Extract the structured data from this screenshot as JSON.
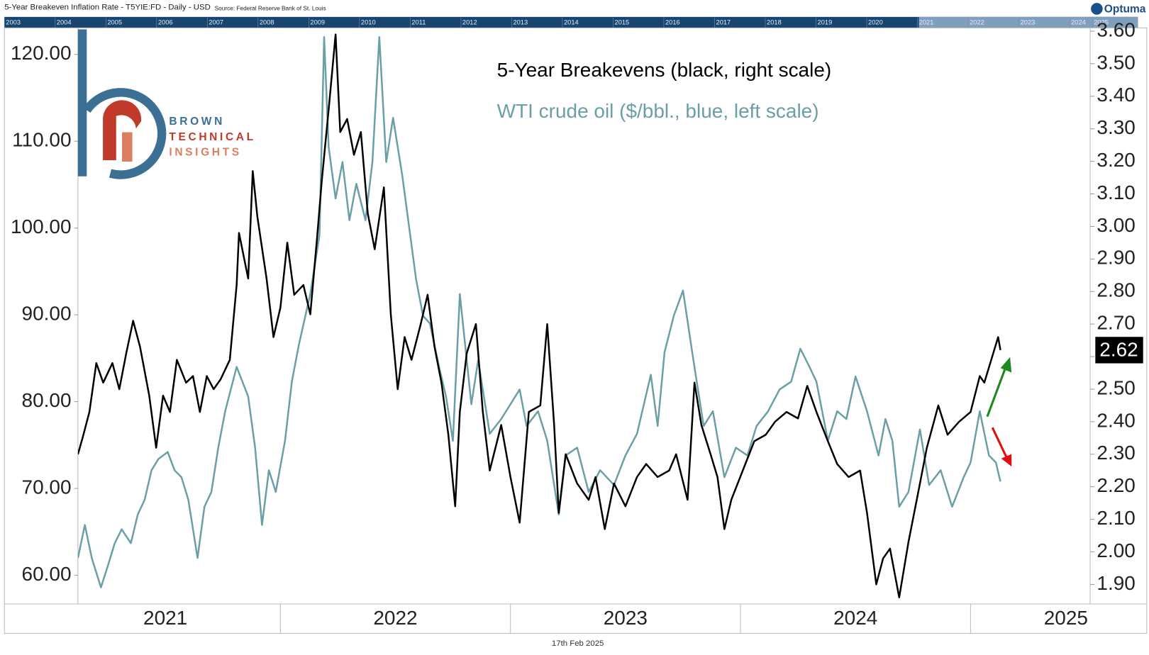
{
  "header": {
    "title": "5-Year Breakeven Inflation Rate - T5YIE:FD - Daily - USD",
    "source": "Source: Federal Reserve Bank of St. Louis",
    "brand": "Optuma"
  },
  "navigator": {
    "years": [
      "2003",
      "2004",
      "2005",
      "2006",
      "2007",
      "2008",
      "2009",
      "2010",
      "2011",
      "2012",
      "2013",
      "2014",
      "2015",
      "2016",
      "2017",
      "2018",
      "2019",
      "2020",
      "2021",
      "2022",
      "2023",
      "2024",
      "2025"
    ]
  },
  "logo": {
    "line1": "BROWN",
    "line2": "TECHNICAL",
    "line3": "INSIGHTS"
  },
  "date": "17th Feb 2025",
  "chart_data": {
    "type": "line",
    "xlim": [
      2021.12,
      2025.52
    ],
    "xticks": [
      {
        "value": 2021.5,
        "label": "2021"
      },
      {
        "value": 2022.5,
        "label": "2022"
      },
      {
        "value": 2023.5,
        "label": "2023"
      },
      {
        "value": 2024.5,
        "label": "2024"
      },
      {
        "value": 2025.5,
        "label": "2025"
      }
    ],
    "x_dividers": [
      2022,
      2023,
      2024,
      2025
    ],
    "ylim": [
      56.7,
      123.05
    ],
    "yticks": [
      {
        "value": 60,
        "label": "60.00"
      },
      {
        "value": 70,
        "label": "70.00"
      },
      {
        "value": 80,
        "label": "80.00"
      },
      {
        "value": 90,
        "label": "90.00"
      },
      {
        "value": 100,
        "label": "100.00"
      },
      {
        "value": 110,
        "label": "110.00"
      },
      {
        "value": 120,
        "label": "120.00"
      }
    ],
    "y2lim": [
      1.84,
      3.61
    ],
    "y2ticks": [
      {
        "value": 1.9,
        "label": "1.90"
      },
      {
        "value": 2.0,
        "label": "2.00"
      },
      {
        "value": 2.1,
        "label": "2.10"
      },
      {
        "value": 2.2,
        "label": "2.20"
      },
      {
        "value": 2.3,
        "label": "2.30"
      },
      {
        "value": 2.4,
        "label": "2.40"
      },
      {
        "value": 2.5,
        "label": "2.50"
      },
      {
        "value": 2.6,
        "label": "2.60"
      },
      {
        "value": 2.7,
        "label": "2.70"
      },
      {
        "value": 2.8,
        "label": "2.80"
      },
      {
        "value": 2.9,
        "label": "2.90"
      },
      {
        "value": 3.0,
        "label": "3.00"
      },
      {
        "value": 3.1,
        "label": "3.10"
      },
      {
        "value": 3.2,
        "label": "3.20"
      },
      {
        "value": 3.3,
        "label": "3.30"
      },
      {
        "value": 3.4,
        "label": "3.40"
      },
      {
        "value": 3.5,
        "label": "3.50"
      },
      {
        "value": 3.6,
        "label": "3.60"
      }
    ],
    "series": [
      {
        "name": "5-Year Breakevens (black, right scale)",
        "color": "#000000",
        "axis": "y2",
        "x": [
          2021.12,
          2021.14,
          2021.17,
          2021.2,
          2021.23,
          2021.27,
          2021.3,
          2021.33,
          2021.36,
          2021.39,
          2021.43,
          2021.46,
          2021.49,
          2021.52,
          2021.55,
          2021.59,
          2021.62,
          2021.65,
          2021.68,
          2021.71,
          2021.74,
          2021.78,
          2021.81,
          2021.82,
          2021.86,
          2021.88,
          2021.9,
          2021.94,
          2021.97,
          2022.0,
          2022.03,
          2022.06,
          2022.1,
          2022.13,
          2022.16,
          2022.18,
          2022.21,
          2022.24,
          2022.26,
          2022.29,
          2022.32,
          2022.35,
          2022.38,
          2022.41,
          2022.45,
          2022.48,
          2022.51,
          2022.54,
          2022.57,
          2022.61,
          2022.64,
          2022.67,
          2022.7,
          2022.73,
          2022.76,
          2022.78,
          2022.81,
          2022.85,
          2022.88,
          2022.91,
          2022.96,
          2023.0,
          2023.04,
          2023.08,
          2023.13,
          2023.16,
          2023.19,
          2023.21,
          2023.24,
          2023.29,
          2023.34,
          2023.37,
          2023.41,
          2023.45,
          2023.5,
          2023.55,
          2023.59,
          2023.64,
          2023.69,
          2023.72,
          2023.77,
          2023.8,
          2023.83,
          2023.87,
          2023.9,
          2023.93,
          2023.96,
          2024.01,
          2024.06,
          2024.11,
          2024.15,
          2024.2,
          2024.25,
          2024.29,
          2024.33,
          2024.38,
          2024.42,
          2024.47,
          2024.52,
          2024.55,
          2024.59,
          2024.62,
          2024.65,
          2024.69,
          2024.73,
          2024.78,
          2024.81,
          2024.86,
          2024.9,
          2024.95,
          2025.0,
          2025.04,
          2025.06,
          2025.09,
          2025.12,
          2025.13
        ],
        "values": [
          2.3,
          2.35,
          2.43,
          2.58,
          2.52,
          2.58,
          2.5,
          2.61,
          2.71,
          2.63,
          2.48,
          2.32,
          2.48,
          2.43,
          2.59,
          2.52,
          2.54,
          2.43,
          2.54,
          2.5,
          2.53,
          2.59,
          2.82,
          2.98,
          2.84,
          3.17,
          3.03,
          2.84,
          2.66,
          2.75,
          2.95,
          2.79,
          2.82,
          2.73,
          2.97,
          3.14,
          3.36,
          3.59,
          3.29,
          3.33,
          3.22,
          3.29,
          3.04,
          2.93,
          3.12,
          2.73,
          2.5,
          2.66,
          2.59,
          2.7,
          2.79,
          2.63,
          2.52,
          2.36,
          2.14,
          2.43,
          2.61,
          2.7,
          2.43,
          2.25,
          2.39,
          2.23,
          2.09,
          2.43,
          2.45,
          2.7,
          2.39,
          2.12,
          2.3,
          2.21,
          2.16,
          2.23,
          2.07,
          2.21,
          2.14,
          2.23,
          2.27,
          2.23,
          2.25,
          2.3,
          2.16,
          2.52,
          2.39,
          2.3,
          2.23,
          2.07,
          2.16,
          2.25,
          2.34,
          2.36,
          2.4,
          2.43,
          2.41,
          2.51,
          2.43,
          2.34,
          2.27,
          2.23,
          2.25,
          2.12,
          1.9,
          1.98,
          2.01,
          1.86,
          2.03,
          2.21,
          2.32,
          2.45,
          2.36,
          2.4,
          2.43,
          2.54,
          2.52,
          2.59,
          2.66,
          2.62
        ]
      },
      {
        "name": "WTI crude oil ($/bbl., blue, left scale)",
        "color": "#6a9fa6",
        "axis": "y",
        "x": [
          2021.12,
          2021.15,
          2021.18,
          2021.22,
          2021.25,
          2021.28,
          2021.31,
          2021.35,
          2021.38,
          2021.41,
          2021.44,
          2021.47,
          2021.51,
          2021.54,
          2021.57,
          2021.6,
          2021.64,
          2021.67,
          2021.7,
          2021.73,
          2021.76,
          2021.81,
          2021.86,
          2021.89,
          2021.92,
          2021.95,
          2021.98,
          2022.02,
          2022.05,
          2022.08,
          2022.13,
          2022.17,
          2022.19,
          2022.21,
          2022.24,
          2022.27,
          2022.3,
          2022.33,
          2022.37,
          2022.4,
          2022.43,
          2022.46,
          2022.49,
          2022.53,
          2022.56,
          2022.59,
          2022.62,
          2022.65,
          2022.69,
          2022.72,
          2022.75,
          2022.78,
          2022.83,
          2022.86,
          2022.91,
          2022.96,
          2023.0,
          2023.04,
          2023.07,
          2023.12,
          2023.16,
          2023.21,
          2023.24,
          2023.29,
          2023.34,
          2023.39,
          2023.45,
          2023.5,
          2023.55,
          2023.61,
          2023.64,
          2023.67,
          2023.71,
          2023.75,
          2023.79,
          2023.81,
          2023.84,
          2023.88,
          2023.93,
          2023.98,
          2024.03,
          2024.07,
          2024.12,
          2024.17,
          2024.22,
          2024.26,
          2024.3,
          2024.33,
          2024.38,
          2024.42,
          2024.46,
          2024.5,
          2024.55,
          2024.6,
          2024.63,
          2024.66,
          2024.69,
          2024.73,
          2024.78,
          2024.82,
          2024.87,
          2024.92,
          2024.97,
          2025.0,
          2025.04,
          2025.08,
          2025.11,
          2025.13
        ],
        "values": [
          62.0,
          65.8,
          62.0,
          58.6,
          61.1,
          63.7,
          65.3,
          63.7,
          67.0,
          68.7,
          72.1,
          73.4,
          74.2,
          72.1,
          71.3,
          68.7,
          62.0,
          67.9,
          69.6,
          74.7,
          78.9,
          84.0,
          80.6,
          74.7,
          65.8,
          72.1,
          69.6,
          75.5,
          82.3,
          86.5,
          92.4,
          99.2,
          122.0,
          109.3,
          103.4,
          107.6,
          100.9,
          105.1,
          100.9,
          107.6,
          122.0,
          107.6,
          112.7,
          106.0,
          100.0,
          94.1,
          89.9,
          89.0,
          84.0,
          80.6,
          75.5,
          92.4,
          79.7,
          84.8,
          76.3,
          78.0,
          79.7,
          81.4,
          77.2,
          78.9,
          75.5,
          67.0,
          73.8,
          74.7,
          69.6,
          72.1,
          70.4,
          73.8,
          76.3,
          83.1,
          77.2,
          85.7,
          89.9,
          92.8,
          85.7,
          82.3,
          77.2,
          78.9,
          71.3,
          74.7,
          73.8,
          77.2,
          78.9,
          81.4,
          82.3,
          86.1,
          84.0,
          82.3,
          75.5,
          78.9,
          78.0,
          82.9,
          78.9,
          73.8,
          78.0,
          75.5,
          67.9,
          69.6,
          76.8,
          70.4,
          72.1,
          67.9,
          71.3,
          73.0,
          78.9,
          73.8,
          73.0,
          70.8
        ]
      }
    ]
  }
}
